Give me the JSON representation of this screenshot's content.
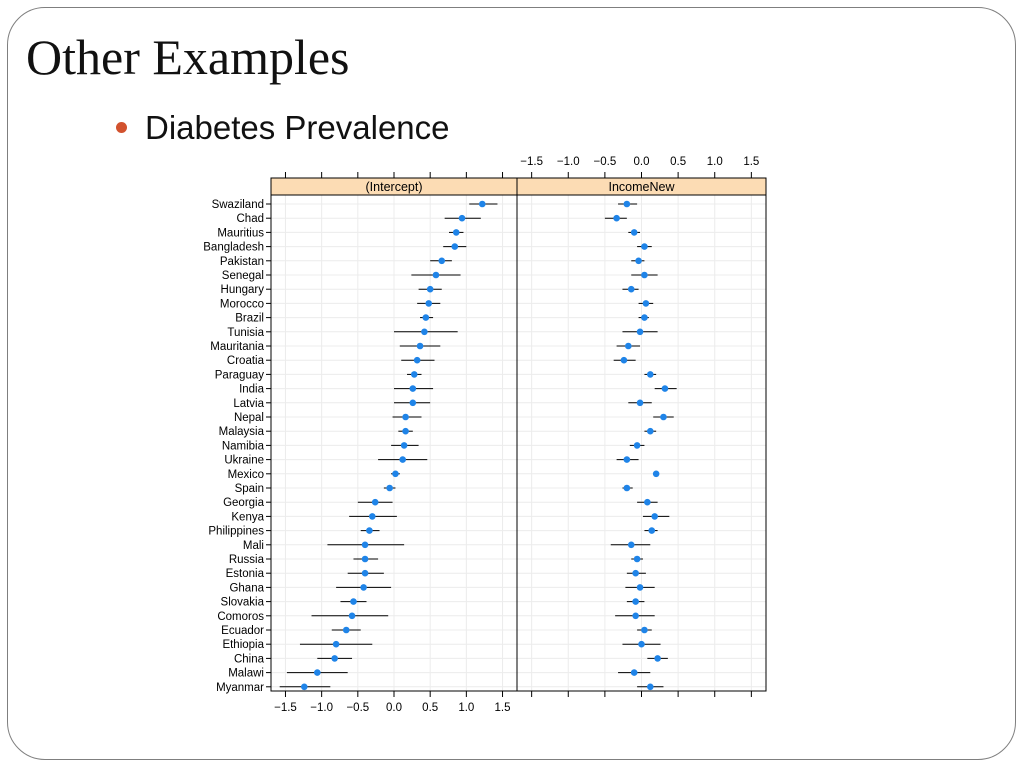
{
  "slide": {
    "title": "Other Examples",
    "bullet": "Diabetes Prevalence",
    "bullet_color": "#d2522e"
  },
  "chart_data": {
    "type": "dotplot",
    "panels": [
      "(Intercept)",
      "IncomeNew"
    ],
    "strip_color": "#fcdcb4",
    "point_color": "#1f84e8",
    "xlim": [
      -1.7,
      1.7
    ],
    "xticks": [
      -1.5,
      -1.0,
      -0.5,
      0.0,
      0.5,
      1.0,
      1.5
    ],
    "xtick_labels": [
      "−1.5",
      "−1.0",
      "−0.5",
      "0.0",
      "0.5",
      "1.0",
      "1.5"
    ],
    "grid": true,
    "rows": [
      {
        "country": "Swaziland",
        "intercept": {
          "est": 1.22,
          "lo": 1.04,
          "hi": 1.43
        },
        "income": {
          "est": -0.2,
          "lo": -0.32,
          "hi": -0.06
        }
      },
      {
        "country": "Chad",
        "intercept": {
          "est": 0.94,
          "lo": 0.7,
          "hi": 1.2
        },
        "income": {
          "est": -0.34,
          "lo": -0.5,
          "hi": -0.2
        }
      },
      {
        "country": "Mauritius",
        "intercept": {
          "est": 0.86,
          "lo": 0.76,
          "hi": 0.96
        },
        "income": {
          "est": -0.1,
          "lo": -0.18,
          "hi": -0.02
        }
      },
      {
        "country": "Bangladesh",
        "intercept": {
          "est": 0.84,
          "lo": 0.68,
          "hi": 1.0
        },
        "income": {
          "est": 0.04,
          "lo": -0.06,
          "hi": 0.14
        }
      },
      {
        "country": "Pakistan",
        "intercept": {
          "est": 0.66,
          "lo": 0.5,
          "hi": 0.8
        },
        "income": {
          "est": -0.04,
          "lo": -0.14,
          "hi": 0.04
        }
      },
      {
        "country": "Senegal",
        "intercept": {
          "est": 0.58,
          "lo": 0.24,
          "hi": 0.92
        },
        "income": {
          "est": 0.04,
          "lo": -0.14,
          "hi": 0.22
        }
      },
      {
        "country": "Hungary",
        "intercept": {
          "est": 0.5,
          "lo": 0.34,
          "hi": 0.66
        },
        "income": {
          "est": -0.14,
          "lo": -0.26,
          "hi": -0.04
        }
      },
      {
        "country": "Morocco",
        "intercept": {
          "est": 0.48,
          "lo": 0.32,
          "hi": 0.64
        },
        "income": {
          "est": 0.06,
          "lo": -0.04,
          "hi": 0.16
        }
      },
      {
        "country": "Brazil",
        "intercept": {
          "est": 0.44,
          "lo": 0.36,
          "hi": 0.54
        },
        "income": {
          "est": 0.04,
          "lo": -0.04,
          "hi": 0.1
        }
      },
      {
        "country": "Tunisia",
        "intercept": {
          "est": 0.42,
          "lo": 0.0,
          "hi": 0.88
        },
        "income": {
          "est": -0.02,
          "lo": -0.26,
          "hi": 0.22
        }
      },
      {
        "country": "Mauritania",
        "intercept": {
          "est": 0.36,
          "lo": 0.08,
          "hi": 0.64
        },
        "income": {
          "est": -0.18,
          "lo": -0.34,
          "hi": -0.02
        }
      },
      {
        "country": "Croatia",
        "intercept": {
          "est": 0.32,
          "lo": 0.1,
          "hi": 0.56
        },
        "income": {
          "est": -0.24,
          "lo": -0.38,
          "hi": -0.08
        }
      },
      {
        "country": "Paraguay",
        "intercept": {
          "est": 0.28,
          "lo": 0.18,
          "hi": 0.38
        },
        "income": {
          "est": 0.12,
          "lo": 0.04,
          "hi": 0.2
        }
      },
      {
        "country": "India",
        "intercept": {
          "est": 0.26,
          "lo": 0.0,
          "hi": 0.54
        },
        "income": {
          "est": 0.32,
          "lo": 0.18,
          "hi": 0.48
        }
      },
      {
        "country": "Latvia",
        "intercept": {
          "est": 0.26,
          "lo": 0.0,
          "hi": 0.5
        },
        "income": {
          "est": -0.02,
          "lo": -0.18,
          "hi": 0.14
        }
      },
      {
        "country": "Nepal",
        "intercept": {
          "est": 0.16,
          "lo": -0.02,
          "hi": 0.38
        },
        "income": {
          "est": 0.3,
          "lo": 0.16,
          "hi": 0.44
        }
      },
      {
        "country": "Malaysia",
        "intercept": {
          "est": 0.16,
          "lo": 0.06,
          "hi": 0.26
        },
        "income": {
          "est": 0.12,
          "lo": 0.04,
          "hi": 0.2
        }
      },
      {
        "country": "Namibia",
        "intercept": {
          "est": 0.14,
          "lo": -0.04,
          "hi": 0.34
        },
        "income": {
          "est": -0.06,
          "lo": -0.16,
          "hi": 0.04
        }
      },
      {
        "country": "Ukraine",
        "intercept": {
          "est": 0.12,
          "lo": -0.22,
          "hi": 0.46
        },
        "income": {
          "est": -0.2,
          "lo": -0.34,
          "hi": -0.04
        }
      },
      {
        "country": "Mexico",
        "intercept": {
          "est": 0.02,
          "lo": -0.04,
          "hi": 0.08
        },
        "income": {
          "est": 0.2,
          "lo": 0.18,
          "hi": 0.22
        }
      },
      {
        "country": "Spain",
        "intercept": {
          "est": -0.06,
          "lo": -0.14,
          "hi": 0.02
        },
        "income": {
          "est": -0.2,
          "lo": -0.26,
          "hi": -0.12
        }
      },
      {
        "country": "Georgia",
        "intercept": {
          "est": -0.26,
          "lo": -0.5,
          "hi": -0.02
        },
        "income": {
          "est": 0.08,
          "lo": -0.06,
          "hi": 0.22
        }
      },
      {
        "country": "Kenya",
        "intercept": {
          "est": -0.3,
          "lo": -0.62,
          "hi": 0.04
        },
        "income": {
          "est": 0.18,
          "lo": 0.02,
          "hi": 0.38
        }
      },
      {
        "country": "Philippines",
        "intercept": {
          "est": -0.34,
          "lo": -0.46,
          "hi": -0.2
        },
        "income": {
          "est": 0.14,
          "lo": 0.04,
          "hi": 0.22
        }
      },
      {
        "country": "Mali",
        "intercept": {
          "est": -0.4,
          "lo": -0.92,
          "hi": 0.14
        },
        "income": {
          "est": -0.14,
          "lo": -0.42,
          "hi": 0.12
        }
      },
      {
        "country": "Russia",
        "intercept": {
          "est": -0.4,
          "lo": -0.56,
          "hi": -0.22
        },
        "income": {
          "est": -0.06,
          "lo": -0.14,
          "hi": 0.02
        }
      },
      {
        "country": "Estonia",
        "intercept": {
          "est": -0.4,
          "lo": -0.64,
          "hi": -0.14
        },
        "income": {
          "est": -0.08,
          "lo": -0.2,
          "hi": 0.06
        }
      },
      {
        "country": "Ghana",
        "intercept": {
          "est": -0.42,
          "lo": -0.8,
          "hi": -0.04
        },
        "income": {
          "est": -0.02,
          "lo": -0.22,
          "hi": 0.18
        }
      },
      {
        "country": "Slovakia",
        "intercept": {
          "est": -0.56,
          "lo": -0.74,
          "hi": -0.38
        },
        "income": {
          "est": -0.08,
          "lo": -0.2,
          "hi": 0.04
        }
      },
      {
        "country": "Comoros",
        "intercept": {
          "est": -0.58,
          "lo": -1.14,
          "hi": -0.08
        },
        "income": {
          "est": -0.08,
          "lo": -0.36,
          "hi": 0.18
        }
      },
      {
        "country": "Ecuador",
        "intercept": {
          "est": -0.66,
          "lo": -0.86,
          "hi": -0.46
        },
        "income": {
          "est": 0.04,
          "lo": -0.06,
          "hi": 0.14
        }
      },
      {
        "country": "Ethiopia",
        "intercept": {
          "est": -0.8,
          "lo": -1.3,
          "hi": -0.3
        },
        "income": {
          "est": 0.0,
          "lo": -0.26,
          "hi": 0.26
        }
      },
      {
        "country": "China",
        "intercept": {
          "est": -0.82,
          "lo": -1.06,
          "hi": -0.58
        },
        "income": {
          "est": 0.22,
          "lo": 0.08,
          "hi": 0.36
        }
      },
      {
        "country": "Malawi",
        "intercept": {
          "est": -1.06,
          "lo": -1.48,
          "hi": -0.64
        },
        "income": {
          "est": -0.1,
          "lo": -0.32,
          "hi": 0.12
        }
      },
      {
        "country": "Myanmar",
        "intercept": {
          "est": -1.24,
          "lo": -1.58,
          "hi": -0.88
        },
        "income": {
          "est": 0.12,
          "lo": -0.06,
          "hi": 0.3
        }
      }
    ]
  }
}
